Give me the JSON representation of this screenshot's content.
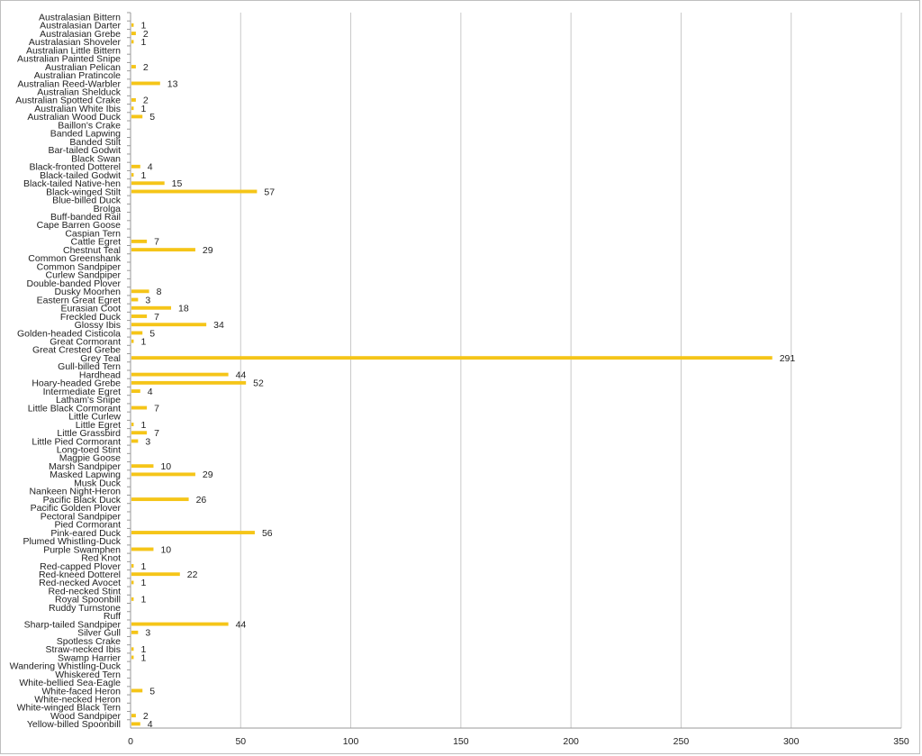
{
  "chart_data": {
    "type": "bar",
    "orientation": "horizontal",
    "title": "",
    "xlabel": "",
    "ylabel": "",
    "xlim": [
      0,
      350
    ],
    "x_ticks": [
      0,
      50,
      100,
      150,
      200,
      250,
      300,
      350
    ],
    "grid": "vertical",
    "legend": "none",
    "bar_color": "#f5c518",
    "categories": [
      "Australasian Bittern",
      "Australasian Darter",
      "Australasian Grebe",
      "Australasian Shoveler",
      "Australian Little Bittern",
      "Australian Painted Snipe",
      "Australian Pelican",
      "Australian Pratincole",
      "Australian Reed-Warbler",
      "Australian Shelduck",
      "Australian Spotted Crake",
      "Australian White Ibis",
      "Australian Wood Duck",
      "Baillon's Crake",
      "Banded Lapwing",
      "Banded Stilt",
      "Bar-tailed Godwit",
      "Black Swan",
      "Black-fronted Dotterel",
      "Black-tailed Godwit",
      "Black-tailed Native-hen",
      "Black-winged Stilt",
      "Blue-billed Duck",
      "Brolga",
      "Buff-banded Rail",
      "Cape Barren Goose",
      "Caspian Tern",
      "Cattle Egret",
      "Chestnut Teal",
      "Common Greenshank",
      "Common Sandpiper",
      "Curlew Sandpiper",
      "Double-banded Plover",
      "Dusky Moorhen",
      "Eastern Great Egret",
      "Eurasian Coot",
      "Freckled Duck",
      "Glossy Ibis",
      "Golden-headed Cisticola",
      "Great Cormorant",
      "Great Crested Grebe",
      "Grey Teal",
      "Gull-billed Tern",
      "Hardhead",
      "Hoary-headed Grebe",
      "Intermediate Egret",
      "Latham's Snipe",
      "Little Black Cormorant",
      "Little Curlew",
      "Little Egret",
      "Little Grassbird",
      "Little Pied Cormorant",
      "Long-toed Stint",
      "Magpie Goose",
      "Marsh Sandpiper",
      "Masked Lapwing",
      "Musk Duck",
      "Nankeen Night-Heron",
      "Pacific Black Duck",
      "Pacific Golden Plover",
      "Pectoral Sandpiper",
      "Pied Cormorant",
      "Pink-eared Duck",
      "Plumed Whistling-Duck",
      "Purple Swamphen",
      "Red Knot",
      "Red-capped Plover",
      "Red-kneed Dotterel",
      "Red-necked Avocet",
      "Red-necked Stint",
      "Royal Spoonbill",
      "Ruddy Turnstone",
      "Ruff",
      "Sharp-tailed Sandpiper",
      "Silver Gull",
      "Spotless Crake",
      "Straw-necked Ibis",
      "Swamp Harrier",
      "Wandering Whistling-Duck",
      "Whiskered Tern",
      "White-bellied Sea-Eagle",
      "White-faced Heron",
      "White-necked Heron",
      "White-winged Black Tern",
      "Wood Sandpiper",
      "Yellow-billed Spoonbill"
    ],
    "values": [
      null,
      1,
      2,
      1,
      null,
      null,
      2,
      null,
      13,
      null,
      2,
      1,
      5,
      null,
      null,
      null,
      null,
      null,
      4,
      1,
      15,
      57,
      null,
      null,
      null,
      null,
      null,
      7,
      29,
      null,
      null,
      null,
      null,
      8,
      3,
      18,
      7,
      34,
      5,
      1,
      null,
      291,
      null,
      44,
      52,
      4,
      null,
      7,
      null,
      1,
      7,
      3,
      null,
      null,
      10,
      29,
      null,
      null,
      26,
      null,
      null,
      null,
      56,
      null,
      10,
      null,
      1,
      22,
      1,
      null,
      1,
      null,
      null,
      44,
      3,
      null,
      1,
      1,
      null,
      null,
      null,
      5,
      null,
      null,
      2,
      4
    ]
  }
}
